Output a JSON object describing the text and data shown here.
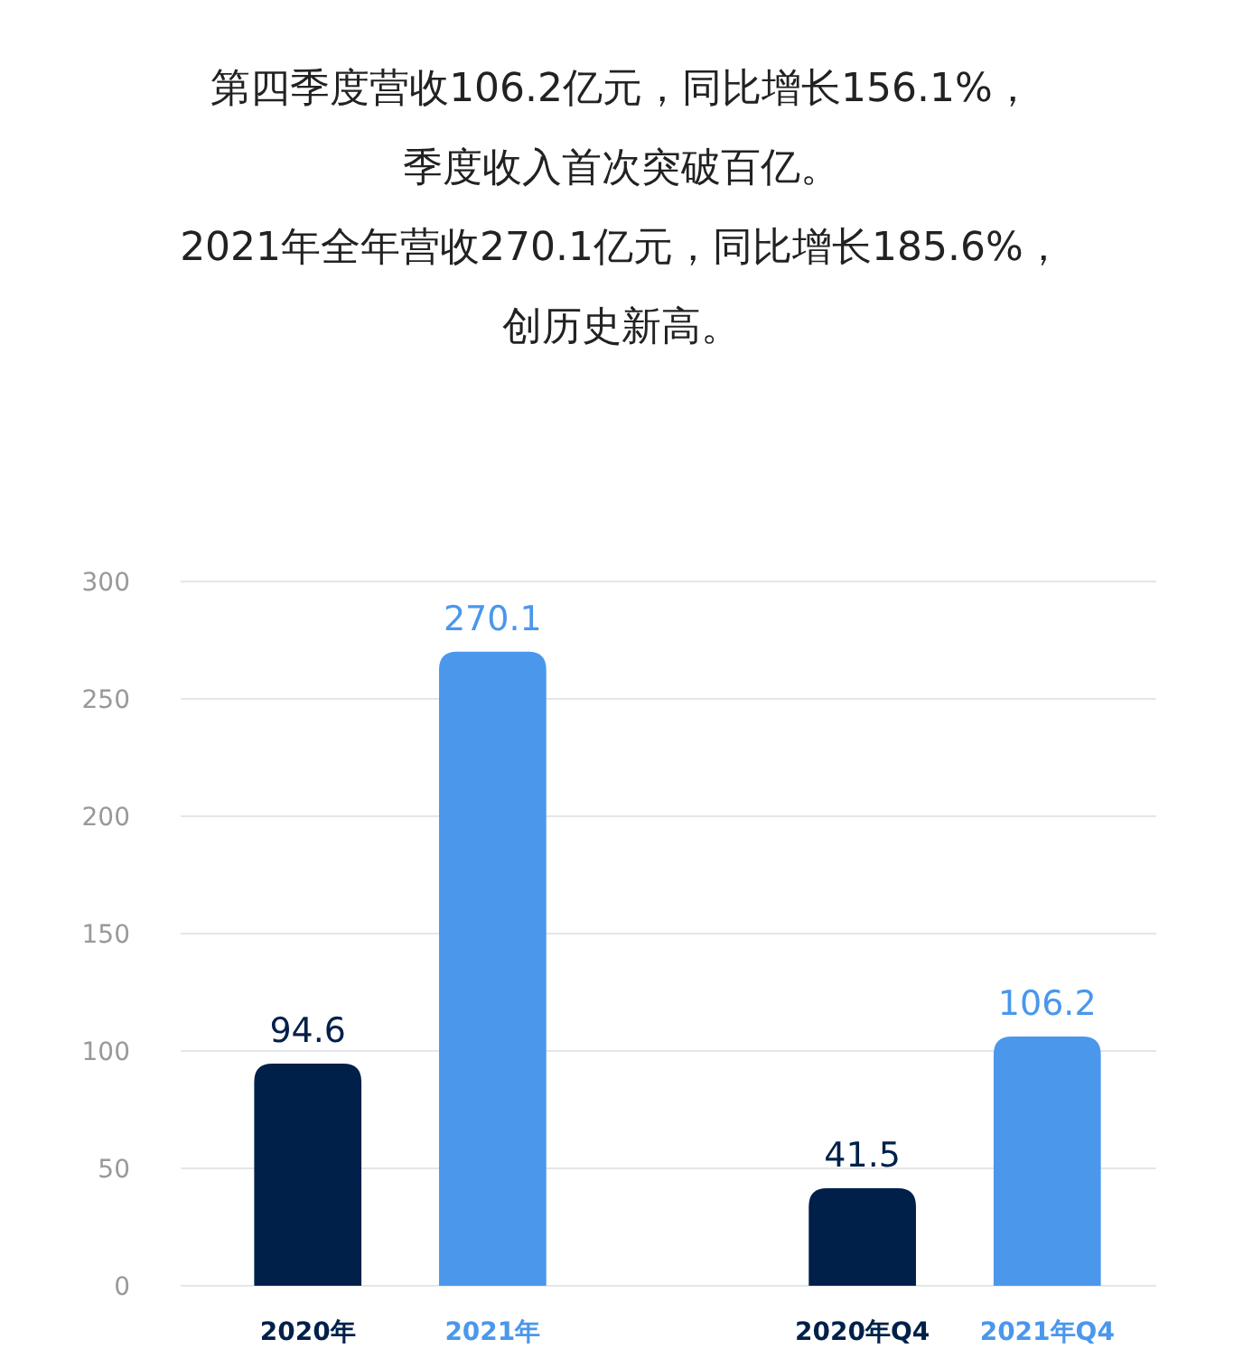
{
  "chart_data": {
    "type": "bar",
    "title": "第四季度营收106.2亿元，同比增长156.1%，季度收入首次突破百亿。",
    "subtitle": "2021年全年营收270.1亿元，同比增长185.6%，创历史新高。",
    "categories": [
      "2020年",
      "2021年",
      null,
      "2020年Q4",
      "2021年Q4"
    ],
    "values": [
      94.6,
      270.1,
      null,
      41.5,
      106.2
    ],
    "colors": [
      "#00204a",
      "#4a97ec",
      "#4a97ec",
      "#00204a",
      "#4a97ec"
    ],
    "ylim": [
      0,
      300
    ],
    "yticks": [
      0,
      50,
      100,
      150,
      200,
      250,
      300
    ],
    "grid": "y",
    "data_labels": true
  }
}
